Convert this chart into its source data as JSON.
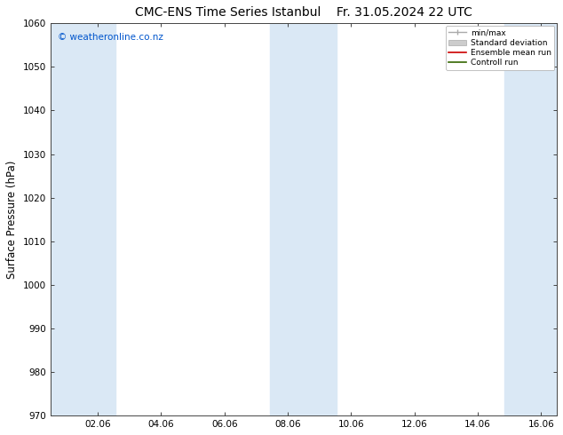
{
  "title_left": "CMC-ENS Time Series Istanbul",
  "title_right": "Fr. 31.05.2024 22 UTC",
  "ylabel": "Surface Pressure (hPa)",
  "ylim": [
    970,
    1060
  ],
  "yticks": [
    970,
    980,
    990,
    1000,
    1010,
    1020,
    1030,
    1040,
    1050,
    1060
  ],
  "xlim": [
    0.5,
    16.5
  ],
  "xtick_positions": [
    2,
    4,
    6,
    8,
    10,
    12,
    14,
    16
  ],
  "xtick_labels": [
    "02.06",
    "04.06",
    "06.06",
    "08.06",
    "10.06",
    "12.06",
    "14.06",
    "16.06"
  ],
  "stripe_spans": [
    [
      0.5,
      1.0,
      "#dae8f5"
    ],
    [
      1.0,
      2.5,
      "#dae8f5"
    ],
    [
      7.5,
      9.5,
      "#dae8f5"
    ],
    [
      14.9,
      16.5,
      "#dae8f5"
    ]
  ],
  "watermark": "© weatheronline.co.nz",
  "watermark_color": "#0055cc",
  "background_color": "#ffffff",
  "plot_bg_color": "#ffffff",
  "legend_items": [
    "min/max",
    "Standard deviation",
    "Ensemble mean run",
    "Controll run"
  ],
  "legend_colors_line": [
    "#aaaaaa",
    "#cccccc",
    "#cc0000",
    "#006600"
  ],
  "title_fontsize": 10,
  "tick_fontsize": 7.5,
  "ylabel_fontsize": 8.5,
  "figsize": [
    6.34,
    4.9
  ],
  "dpi": 100
}
